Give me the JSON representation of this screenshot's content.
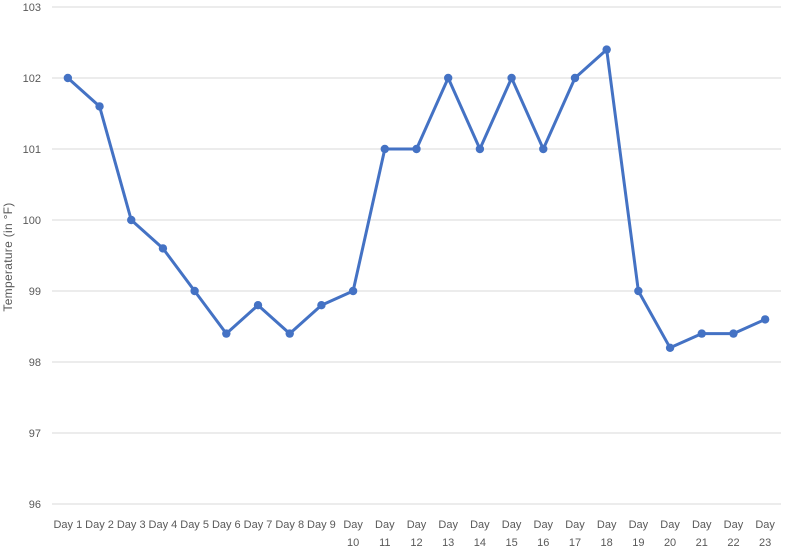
{
  "chart_data": {
    "type": "line",
    "title": "",
    "xlabel": "",
    "ylabel": "Temperature  (in °F)",
    "ylim": [
      96,
      103
    ],
    "yticks": [
      96,
      97,
      98,
      99,
      100,
      101,
      102,
      103
    ],
    "grid": true,
    "legend": "none",
    "categories": [
      "Day 1",
      "Day 2",
      "Day 3",
      "Day 4",
      "Day 5",
      "Day 6",
      "Day 7",
      "Day 8",
      "Day 9",
      "Day 10",
      "Day 11",
      "Day 12",
      "Day 13",
      "Day 14",
      "Day 15",
      "Day 16",
      "Day 17",
      "Day 18",
      "Day 19",
      "Day 20",
      "Day 21",
      "Day 22",
      "Day 23"
    ],
    "series": [
      {
        "values": [
          102,
          101.6,
          100,
          99.6,
          99,
          98.4,
          98.8,
          98.4,
          98.8,
          99,
          101,
          101,
          102,
          101,
          102,
          101,
          102,
          102.4,
          99,
          98.2,
          98.4,
          98.4,
          98.6
        ],
        "color": "#4472c4"
      }
    ]
  }
}
